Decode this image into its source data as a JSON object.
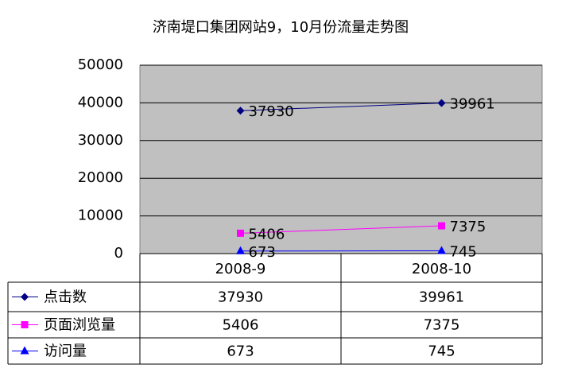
{
  "chart_data": {
    "type": "line",
    "title": "济南堤口集团网站9，10月份流量走势图",
    "categories": [
      "2008-9",
      "2008-10"
    ],
    "series": [
      {
        "name": "点击数",
        "color": "#000080",
        "marker": "diamond",
        "values": [
          37930,
          39961
        ]
      },
      {
        "name": "页面浏览量",
        "color": "#ff00ff",
        "marker": "square",
        "values": [
          5406,
          7375
        ]
      },
      {
        "name": "访问量",
        "color": "#0000ff",
        "marker": "triangle",
        "values": [
          673,
          745
        ]
      }
    ],
    "ylim": [
      0,
      50000
    ],
    "yticks": [
      0,
      10000,
      20000,
      30000,
      40000,
      50000
    ],
    "grid": true
  }
}
